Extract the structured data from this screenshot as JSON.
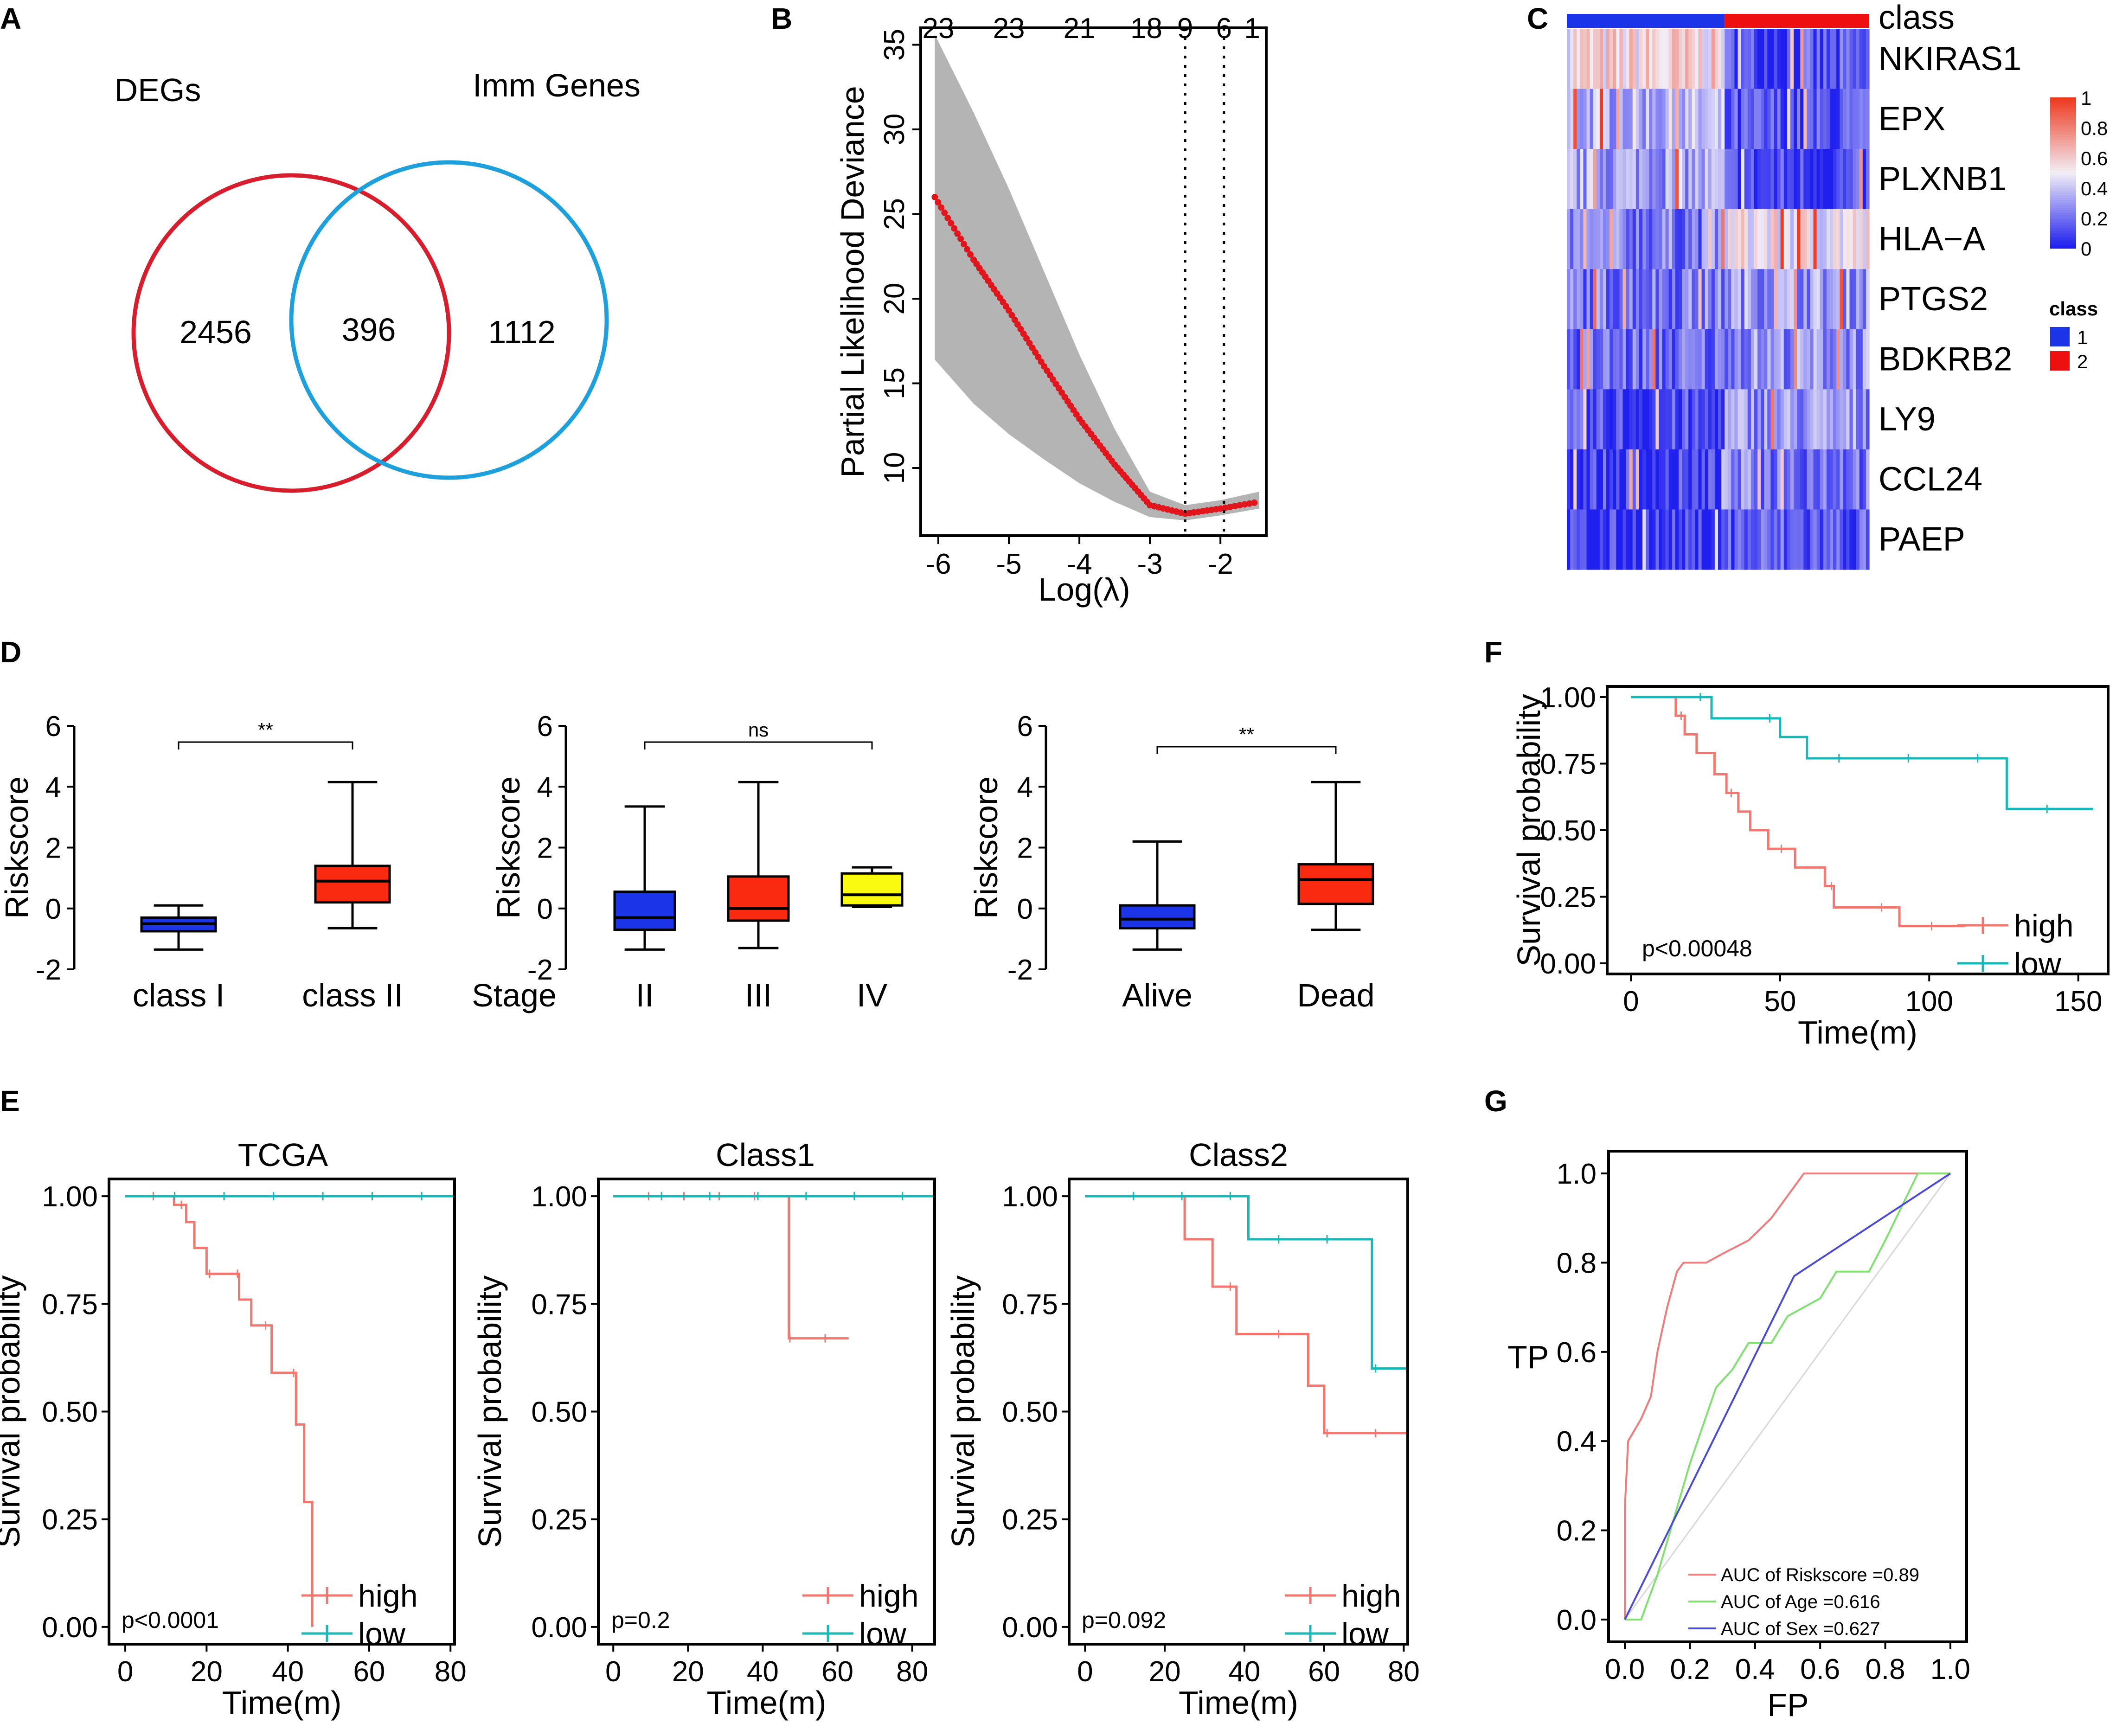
{
  "panel_labels": [
    "A",
    "B",
    "C",
    "D",
    "E",
    "F",
    "G"
  ],
  "colors": {
    "venn_left": "#d81e2c",
    "venn_right": "#1ea0dc",
    "high": "#f4766e",
    "low": "#16b8b8",
    "lasso_band": "#b4b4b4",
    "lasso_dots": "#e0161c",
    "heat_low": "#2020ee",
    "heat_mid": "#f2eef6",
    "heat_high": "#ee3a20",
    "box_blue": "#1c34e8",
    "box_red": "#fa2a10",
    "box_yellow": "#fafa10",
    "roc_risk": "#f27a7a",
    "roc_age": "#80e070",
    "roc_sex": "#4a4adc"
  },
  "chart_data": [
    {
      "id": "A",
      "type": "venn",
      "sets": [
        "DEGs",
        "Imm Genes"
      ],
      "counts": {
        "left_only": "2456",
        "both": "396",
        "right_only": "1112"
      }
    },
    {
      "id": "B",
      "type": "line",
      "xlabel": "Log(λ)",
      "ylabel": "Partial Likelihood Deviance",
      "x_ticks": [
        "-6",
        "-5",
        "-4",
        "-3",
        "-2"
      ],
      "y_ticks": [
        "10",
        "15",
        "20",
        "25",
        "30",
        "35"
      ],
      "top_ticks": [
        "23",
        "23",
        "21",
        "18",
        "9",
        "6",
        "1"
      ],
      "top_tick_x": [
        -6.0,
        -5.0,
        -4.0,
        -3.05,
        -2.5,
        -1.95,
        -1.55
      ],
      "xlim": [
        -6.25,
        -1.35
      ],
      "ylim": [
        6.0,
        36.0
      ],
      "vlines": [
        -2.5,
        -1.95
      ],
      "points": [
        [
          -6.05,
          26.0
        ],
        [
          -5.5,
          22.3
        ],
        [
          -5.0,
          19.3
        ],
        [
          -4.5,
          16.0
        ],
        [
          -4.0,
          12.9
        ],
        [
          -3.5,
          10.2
        ],
        [
          -3.0,
          7.8
        ],
        [
          -2.5,
          7.3
        ],
        [
          -2.0,
          7.6
        ],
        [
          -1.45,
          8.0
        ]
      ],
      "band_upper": [
        [
          -6.05,
          35.6
        ],
        [
          -5.5,
          31.0
        ],
        [
          -5.0,
          26.5
        ],
        [
          -4.5,
          21.6
        ],
        [
          -4.0,
          16.7
        ],
        [
          -3.5,
          12.3
        ],
        [
          -3.0,
          8.6
        ],
        [
          -2.5,
          7.8
        ],
        [
          -2.0,
          8.1
        ],
        [
          -1.45,
          8.6
        ]
      ],
      "band_lower": [
        [
          -6.05,
          16.4
        ],
        [
          -5.5,
          13.8
        ],
        [
          -5.0,
          12.0
        ],
        [
          -4.5,
          10.5
        ],
        [
          -4.0,
          9.1
        ],
        [
          -3.5,
          8.0
        ],
        [
          -3.0,
          7.1
        ],
        [
          -2.5,
          6.9
        ],
        [
          -2.0,
          7.2
        ],
        [
          -1.45,
          7.6
        ]
      ]
    },
    {
      "id": "C",
      "type": "heatmap",
      "genes": [
        "NKIRAS1",
        "EPX",
        "PLXNB1",
        "HLA−A",
        "PTGS2",
        "BDKRB2",
        "LY9",
        "CCL24",
        "PAEP"
      ],
      "class_row_label": "class",
      "n_class1": 48,
      "n_class2": 44,
      "scale_ticks": [
        "1",
        "0.8",
        "0.6",
        "0.4",
        "0.2",
        "0"
      ],
      "legend_title": "class",
      "legend_items": [
        "1",
        "2"
      ],
      "row_means_class1": [
        0.55,
        0.35,
        0.32,
        0.22,
        0.22,
        0.18,
        0.08,
        0.06,
        0.04
      ],
      "row_means_class2": [
        0.1,
        0.1,
        0.08,
        0.5,
        0.3,
        0.28,
        0.28,
        0.22,
        0.14
      ]
    },
    {
      "id": "D1",
      "type": "box",
      "ylabel": "Riskscore",
      "y_ticks": [
        "6",
        "4",
        "2",
        "0",
        "-2"
      ],
      "ylim": [
        -2,
        6
      ],
      "categories": [
        "class I",
        "class II"
      ],
      "boxes": [
        {
          "min": -1.35,
          "q1": -0.75,
          "median": -0.5,
          "q3": -0.3,
          "max": 0.1
        },
        {
          "min": -0.65,
          "q1": 0.2,
          "median": 0.9,
          "q3": 1.4,
          "max": 4.15
        }
      ],
      "significance": "**"
    },
    {
      "id": "D2",
      "type": "box",
      "ylabel": "Riskscore",
      "y_ticks": [
        "6",
        "4",
        "2",
        "0",
        "-2"
      ],
      "ylim": [
        -2,
        6
      ],
      "axis_prefix": "Stage",
      "categories": [
        "II",
        "III",
        "IV"
      ],
      "boxes": [
        {
          "min": -1.35,
          "q1": -0.7,
          "median": -0.3,
          "q3": 0.55,
          "max": 3.35
        },
        {
          "min": -1.3,
          "q1": -0.4,
          "median": 0.0,
          "q3": 1.05,
          "max": 4.15
        },
        {
          "min": 0.05,
          "q1": 0.1,
          "median": 0.45,
          "q3": 1.15,
          "max": 1.35
        }
      ],
      "significance": "ns"
    },
    {
      "id": "D3",
      "type": "box",
      "ylabel": "Riskscore",
      "y_ticks": [
        "6",
        "4",
        "2",
        "0",
        "-2"
      ],
      "ylim": [
        -2,
        6
      ],
      "categories": [
        "Alive",
        "Dead"
      ],
      "boxes": [
        {
          "min": -1.35,
          "q1": -0.65,
          "median": -0.35,
          "q3": 0.1,
          "max": 2.2
        },
        {
          "min": -0.7,
          "q1": 0.15,
          "median": 0.95,
          "q3": 1.45,
          "max": 4.15
        }
      ],
      "significance": "**"
    },
    {
      "id": "F",
      "type": "line",
      "subtype": "kaplan-meier",
      "xlabel": "Time(m)",
      "ylabel": "Survival probability",
      "x_ticks": [
        "0",
        "50",
        "100",
        "150"
      ],
      "y_ticks": [
        "1.00",
        "0.75",
        "0.50",
        "0.25",
        "0.00"
      ],
      "xlim": [
        -8,
        160
      ],
      "ylim": [
        -0.04,
        1.04
      ],
      "pvalue": "p<0.00048",
      "series": [
        {
          "name": "high",
          "steps": [
            [
              0,
              1.0
            ],
            [
              15,
              1.0
            ],
            [
              15,
              0.93
            ],
            [
              18,
              0.93
            ],
            [
              18,
              0.86
            ],
            [
              22,
              0.86
            ],
            [
              22,
              0.79
            ],
            [
              28,
              0.79
            ],
            [
              28,
              0.71
            ],
            [
              32,
              0.71
            ],
            [
              32,
              0.64
            ],
            [
              36,
              0.64
            ],
            [
              36,
              0.57
            ],
            [
              40,
              0.57
            ],
            [
              40,
              0.5
            ],
            [
              46,
              0.5
            ],
            [
              46,
              0.43
            ],
            [
              55,
              0.43
            ],
            [
              55,
              0.36
            ],
            [
              65,
              0.36
            ],
            [
              65,
              0.29
            ],
            [
              68,
              0.29
            ],
            [
              68,
              0.21
            ],
            [
              90,
              0.21
            ],
            [
              90,
              0.14
            ],
            [
              112,
              0.14
            ]
          ]
        },
        {
          "name": "low",
          "steps": [
            [
              0,
              1.0
            ],
            [
              27,
              1.0
            ],
            [
              27,
              0.92
            ],
            [
              50,
              0.92
            ],
            [
              50,
              0.85
            ],
            [
              59,
              0.85
            ],
            [
              59,
              0.77
            ],
            [
              126,
              0.77
            ],
            [
              126,
              0.58
            ],
            [
              155,
              0.58
            ]
          ]
        }
      ]
    },
    {
      "id": "E1",
      "type": "line",
      "subtype": "kaplan-meier",
      "title": "TCGA",
      "xlabel": "Time(m)",
      "ylabel": "Survival probability",
      "x_ticks": [
        "0",
        "20",
        "40",
        "60",
        "80"
      ],
      "y_ticks": [
        "1.00",
        "0.75",
        "0.50",
        "0.25",
        "0.00"
      ],
      "xlim": [
        -4,
        81
      ],
      "ylim": [
        -0.04,
        1.04
      ],
      "pvalue": "p<0.0001",
      "series": [
        {
          "name": "high",
          "steps": [
            [
              0,
              1.0
            ],
            [
              12,
              1.0
            ],
            [
              12,
              0.98
            ],
            [
              15,
              0.98
            ],
            [
              15,
              0.94
            ],
            [
              17,
              0.94
            ],
            [
              17,
              0.88
            ],
            [
              20,
              0.88
            ],
            [
              20,
              0.82
            ],
            [
              28,
              0.82
            ],
            [
              28,
              0.76
            ],
            [
              31,
              0.76
            ],
            [
              31,
              0.7
            ],
            [
              36,
              0.7
            ],
            [
              36,
              0.59
            ],
            [
              42,
              0.59
            ],
            [
              42,
              0.47
            ],
            [
              44,
              0.47
            ],
            [
              44,
              0.29
            ],
            [
              46,
              0.29
            ],
            [
              46,
              0.0
            ]
          ]
        },
        {
          "name": "low",
          "steps": [
            [
              0,
              1.0
            ],
            [
              81,
              1.0
            ]
          ]
        }
      ]
    },
    {
      "id": "E2",
      "type": "line",
      "subtype": "kaplan-meier",
      "title": "Class1",
      "xlabel": "Time(m)",
      "ylabel": "Survival probability",
      "x_ticks": [
        "0",
        "20",
        "40",
        "60",
        "80"
      ],
      "y_ticks": [
        "1.00",
        "0.75",
        "0.50",
        "0.25",
        "0.00"
      ],
      "xlim": [
        -4,
        86
      ],
      "ylim": [
        -0.04,
        1.04
      ],
      "pvalue": "p=0.2",
      "series": [
        {
          "name": "high",
          "steps": [
            [
              0,
              1.0
            ],
            [
              47,
              1.0
            ],
            [
              47,
              0.67
            ],
            [
              63,
              0.67
            ]
          ]
        },
        {
          "name": "low",
          "steps": [
            [
              0,
              1.0
            ],
            [
              86,
              1.0
            ]
          ]
        }
      ]
    },
    {
      "id": "E3",
      "type": "line",
      "subtype": "kaplan-meier",
      "title": "Class2",
      "xlabel": "Time(m)",
      "ylabel": "Survival probability",
      "x_ticks": [
        "0",
        "20",
        "40",
        "60",
        "80"
      ],
      "y_ticks": [
        "1.00",
        "0.75",
        "0.50",
        "0.25",
        "0.00"
      ],
      "xlim": [
        -4,
        81
      ],
      "ylim": [
        -0.04,
        1.04
      ],
      "pvalue": "p=0.092",
      "series": [
        {
          "name": "high",
          "steps": [
            [
              0,
              1.0
            ],
            [
              25,
              1.0
            ],
            [
              25,
              0.9
            ],
            [
              32,
              0.9
            ],
            [
              32,
              0.79
            ],
            [
              38,
              0.79
            ],
            [
              38,
              0.68
            ],
            [
              56,
              0.68
            ],
            [
              56,
              0.56
            ],
            [
              60,
              0.56
            ],
            [
              60,
              0.45
            ],
            [
              81,
              0.45
            ]
          ]
        },
        {
          "name": "low",
          "steps": [
            [
              0,
              1.0
            ],
            [
              41,
              1.0
            ],
            [
              41,
              0.9
            ],
            [
              72,
              0.9
            ],
            [
              72,
              0.6
            ],
            [
              81,
              0.6
            ]
          ]
        }
      ]
    },
    {
      "id": "G",
      "type": "line",
      "subtype": "roc",
      "xlabel": "FP",
      "ylabel": "TP",
      "x_ticks": [
        "0.0",
        "0.2",
        "0.4",
        "0.6",
        "0.8",
        "1.0"
      ],
      "y_ticks": [
        "1.0",
        "0.8",
        "0.6",
        "0.4",
        "0.2",
        "0.0"
      ],
      "xlim": [
        -0.05,
        1.05
      ],
      "ylim": [
        -0.05,
        1.05
      ],
      "series": [
        {
          "name": "AUC of Riskscore =0.89",
          "points": [
            [
              0.0,
              0.0
            ],
            [
              0.0,
              0.25
            ],
            [
              0.01,
              0.4
            ],
            [
              0.05,
              0.45
            ],
            [
              0.08,
              0.5
            ],
            [
              0.1,
              0.6
            ],
            [
              0.13,
              0.7
            ],
            [
              0.16,
              0.78
            ],
            [
              0.18,
              0.8
            ],
            [
              0.25,
              0.8
            ],
            [
              0.3,
              0.82
            ],
            [
              0.38,
              0.85
            ],
            [
              0.45,
              0.9
            ],
            [
              0.5,
              0.95
            ],
            [
              0.55,
              1.0
            ],
            [
              1.0,
              1.0
            ]
          ]
        },
        {
          "name": "AUC of Age =0.616",
          "points": [
            [
              0.0,
              0.0
            ],
            [
              0.05,
              0.0
            ],
            [
              0.1,
              0.1
            ],
            [
              0.2,
              0.35
            ],
            [
              0.28,
              0.52
            ],
            [
              0.33,
              0.56
            ],
            [
              0.38,
              0.62
            ],
            [
              0.45,
              0.62
            ],
            [
              0.5,
              0.68
            ],
            [
              0.6,
              0.72
            ],
            [
              0.65,
              0.78
            ],
            [
              0.75,
              0.78
            ],
            [
              0.8,
              0.85
            ],
            [
              0.9,
              1.0
            ],
            [
              1.0,
              1.0
            ]
          ]
        },
        {
          "name": "AUC of Sex =0.627",
          "points": [
            [
              0.0,
              0.0
            ],
            [
              0.52,
              0.77
            ],
            [
              1.0,
              1.0
            ]
          ]
        }
      ]
    }
  ]
}
